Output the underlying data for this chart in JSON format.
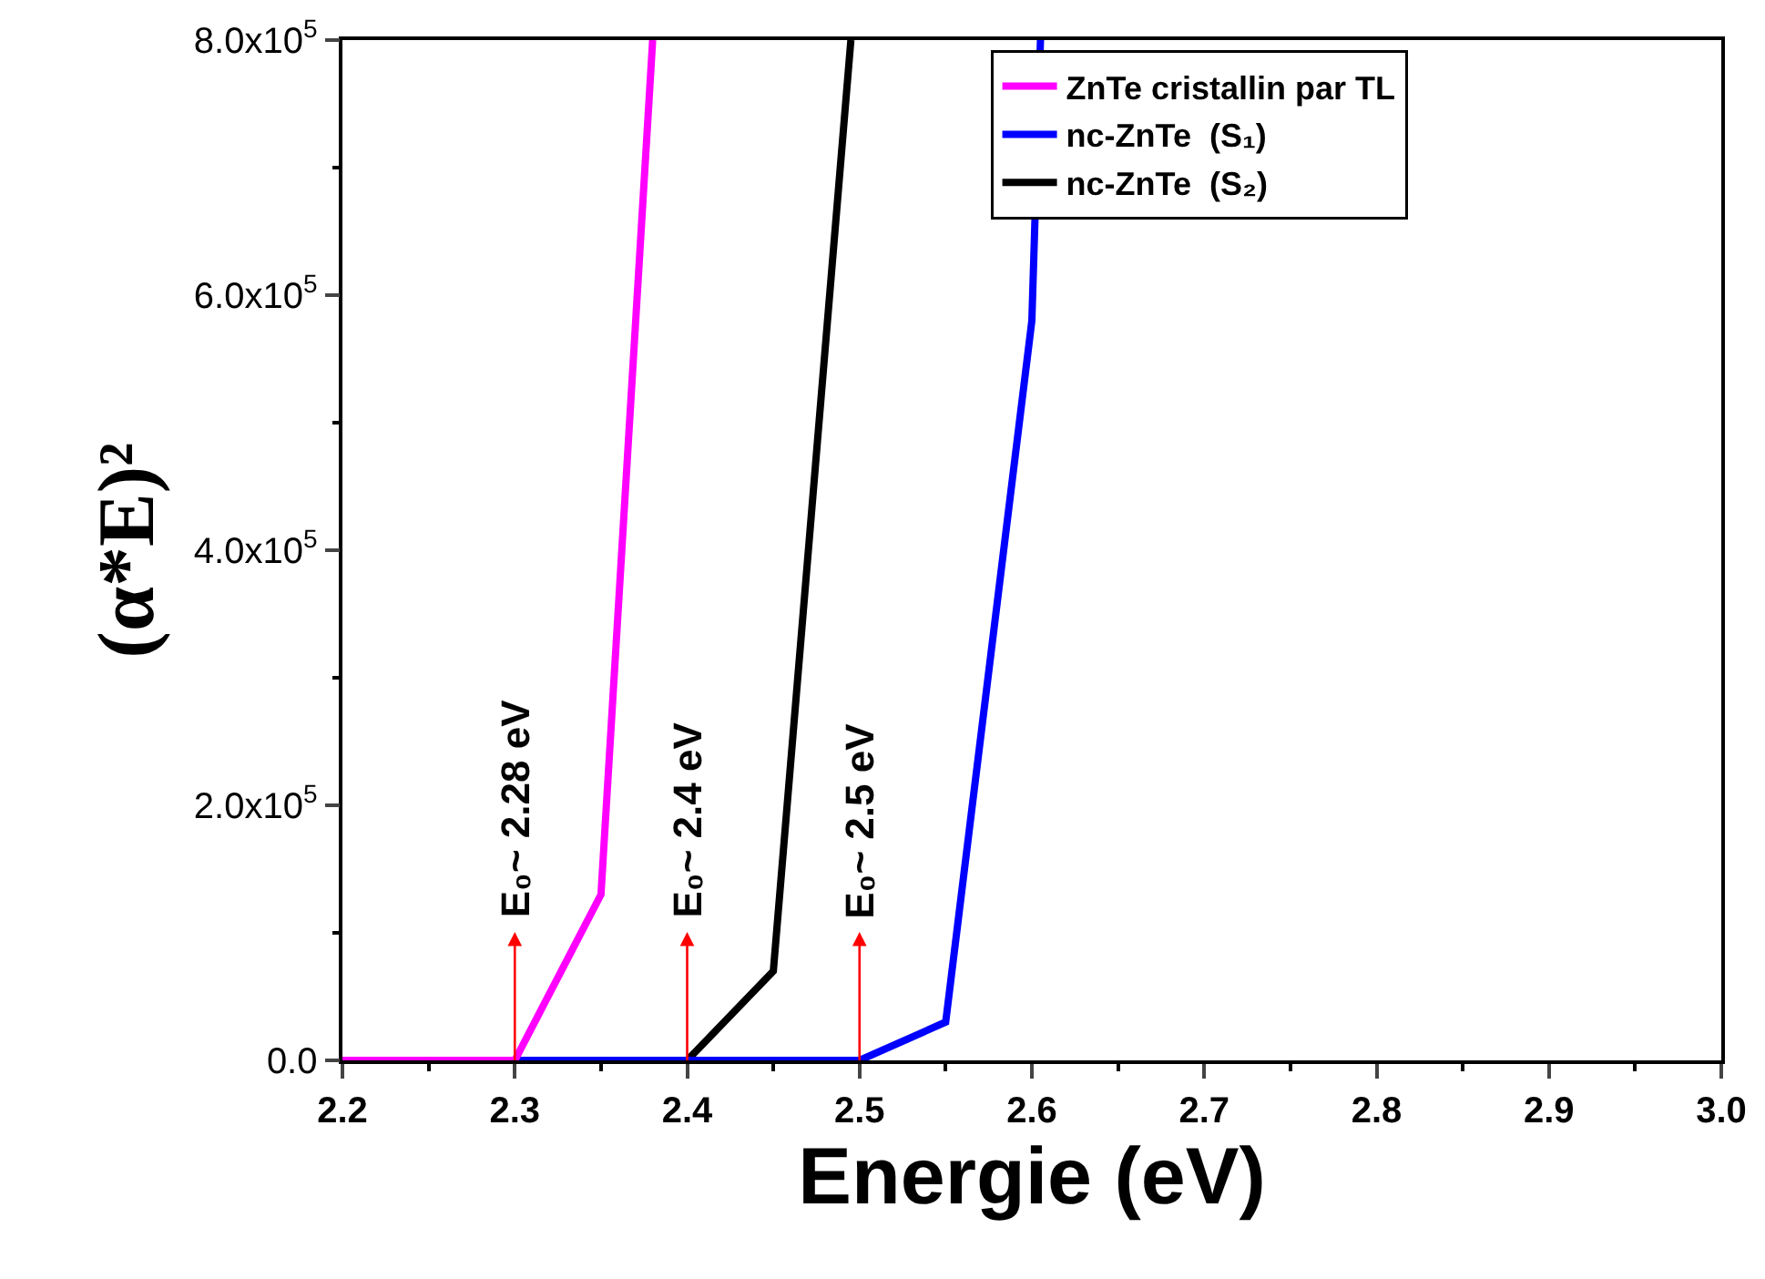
{
  "chart_data": {
    "type": "line",
    "xlabel": "Energie (eV)",
    "ylabel": "(α*E)²",
    "xlim": [
      2.2,
      3.0
    ],
    "xticks": [
      {
        "value": 2.2,
        "label": "2.2"
      },
      {
        "value": 2.3,
        "label": "2.3"
      },
      {
        "value": 2.4,
        "label": "2.4"
      },
      {
        "value": 2.5,
        "label": "2.5"
      },
      {
        "value": 2.6,
        "label": "2.6"
      },
      {
        "value": 2.7,
        "label": "2.7"
      },
      {
        "value": 2.8,
        "label": "2.8"
      },
      {
        "value": 2.9,
        "label": "2.9"
      },
      {
        "value": 3.0,
        "label": "3.0"
      }
    ],
    "ylim": [
      0,
      800000
    ],
    "yticks": [
      {
        "value": 0,
        "label": "0.0"
      },
      {
        "value": 200000,
        "label": "2.0x10$^{5}$"
      },
      {
        "value": 400000,
        "label": "4.0x10$^{5}$"
      },
      {
        "value": 600000,
        "label": "6.0x10$^{5}$"
      },
      {
        "value": 800000,
        "label": "8.0x10$^{5}$"
      }
    ],
    "grid": false,
    "legend": "top right",
    "marker": "none",
    "line_style": "solid",
    "series": [
      {
        "name": "nc-ZnTe  (S₂)",
        "color": "#000000",
        "x": [
          2.4,
          2.45,
          2.495
        ],
        "values": [
          0,
          70000,
          800000
        ]
      },
      {
        "name": "nc-ZnTe  (S₁)",
        "color": "#0000ff",
        "x": [
          2.3,
          2.5,
          2.55,
          2.6,
          2.605
        ],
        "values": [
          0,
          0,
          30000,
          580000,
          800000
        ]
      },
      {
        "name": "ZnTe cristallin par TL",
        "color": "#ff00ff",
        "x": [
          2.2,
          2.3,
          2.35,
          2.38
        ],
        "values": [
          0,
          0,
          130000,
          800000
        ]
      }
    ],
    "annotations": [
      {
        "text": "E₀~ 2.28 eV",
        "x": 2.3,
        "y": 0
      },
      {
        "text": "E₀~ 2.4 eV",
        "x": 2.4,
        "y": 0
      },
      {
        "text": "E₀~ 2.5 eV",
        "x": 2.5,
        "y": 0
      }
    ]
  }
}
